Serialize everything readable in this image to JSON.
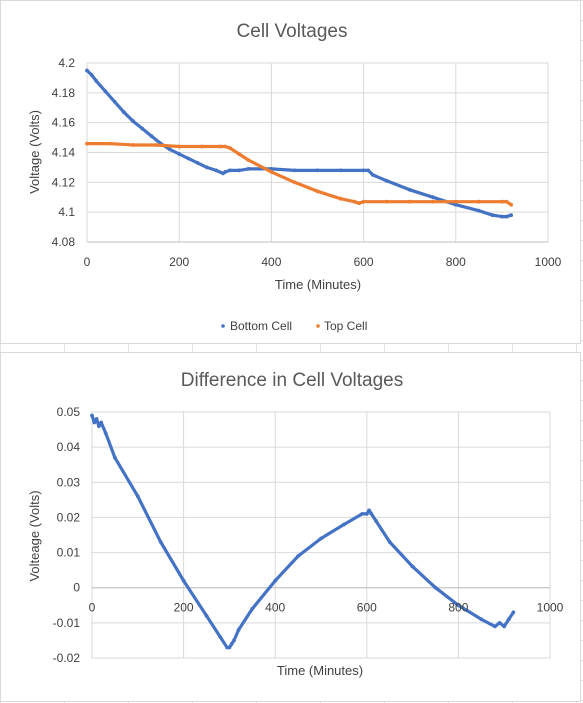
{
  "chart_data": [
    {
      "type": "scatter",
      "title": "Cell Voltages",
      "xlabel": "Time (Minutes)",
      "ylabel": "Voltage (Volts)",
      "xlim": [
        0,
        1000
      ],
      "ylim": [
        4.08,
        4.2
      ],
      "xticks": [
        "0",
        "200",
        "400",
        "600",
        "800",
        "1000"
      ],
      "yticks": [
        "4.08",
        "4.1",
        "4.12",
        "4.14",
        "4.16",
        "4.18",
        "4.2"
      ],
      "grid": true,
      "legend_position": "bottom",
      "series": [
        {
          "name": "Bottom Cell",
          "color": "#4472c4",
          "points": [
            [
              0,
              4.195
            ],
            [
              10,
              4.192
            ],
            [
              20,
              4.188
            ],
            [
              40,
              4.181
            ],
            [
              60,
              4.174
            ],
            [
              80,
              4.167
            ],
            [
              100,
              4.161
            ],
            [
              120,
              4.156
            ],
            [
              140,
              4.151
            ],
            [
              160,
              4.146
            ],
            [
              180,
              4.142
            ],
            [
              200,
              4.139
            ],
            [
              220,
              4.136
            ],
            [
              240,
              4.133
            ],
            [
              260,
              4.13
            ],
            [
              280,
              4.128
            ],
            [
              295,
              4.126
            ],
            [
              300,
              4.127
            ],
            [
              310,
              4.128
            ],
            [
              330,
              4.128
            ],
            [
              350,
              4.129
            ],
            [
              400,
              4.129
            ],
            [
              450,
              4.128
            ],
            [
              500,
              4.128
            ],
            [
              550,
              4.128
            ],
            [
              600,
              4.128
            ],
            [
              610,
              4.128
            ],
            [
              620,
              4.125
            ],
            [
              650,
              4.121
            ],
            [
              700,
              4.115
            ],
            [
              750,
              4.11
            ],
            [
              800,
              4.105
            ],
            [
              850,
              4.101
            ],
            [
              880,
              4.098
            ],
            [
              900,
              4.097
            ],
            [
              910,
              4.097
            ],
            [
              920,
              4.098
            ]
          ]
        },
        {
          "name": "Top Cell",
          "color": "#ed7d31",
          "points": [
            [
              0,
              4.146
            ],
            [
              50,
              4.146
            ],
            [
              100,
              4.145
            ],
            [
              150,
              4.145
            ],
            [
              200,
              4.144
            ],
            [
              250,
              4.144
            ],
            [
              290,
              4.144
            ],
            [
              300,
              4.144
            ],
            [
              310,
              4.143
            ],
            [
              330,
              4.139
            ],
            [
              350,
              4.135
            ],
            [
              400,
              4.127
            ],
            [
              450,
              4.12
            ],
            [
              500,
              4.114
            ],
            [
              550,
              4.109
            ],
            [
              580,
              4.107
            ],
            [
              590,
              4.106
            ],
            [
              600,
              4.107
            ],
            [
              650,
              4.107
            ],
            [
              700,
              4.107
            ],
            [
              750,
              4.107
            ],
            [
              800,
              4.107
            ],
            [
              850,
              4.107
            ],
            [
              900,
              4.107
            ],
            [
              910,
              4.107
            ],
            [
              920,
              4.105
            ]
          ]
        }
      ]
    },
    {
      "type": "scatter",
      "title": "Difference in Cell Voltages",
      "xlabel": "Time (Minutes)",
      "ylabel": "Volteage (Volts)",
      "xlim": [
        0,
        1000
      ],
      "ylim": [
        -0.02,
        0.05
      ],
      "xticks": [
        "0",
        "200",
        "400",
        "600",
        "800",
        "1000"
      ],
      "yticks": [
        "-0.02",
        "-0.01",
        "0",
        "0.01",
        "0.02",
        "0.03",
        "0.04",
        "0.05"
      ],
      "grid": true,
      "series": [
        {
          "color": "#4472c4",
          "points": [
            [
              0,
              0.049
            ],
            [
              5,
              0.047
            ],
            [
              10,
              0.048
            ],
            [
              15,
              0.046
            ],
            [
              20,
              0.047
            ],
            [
              30,
              0.044
            ],
            [
              50,
              0.037
            ],
            [
              100,
              0.026
            ],
            [
              150,
              0.013
            ],
            [
              200,
              0.002
            ],
            [
              250,
              -0.008
            ],
            [
              280,
              -0.014
            ],
            [
              295,
              -0.017
            ],
            [
              300,
              -0.017
            ],
            [
              305,
              -0.016
            ],
            [
              310,
              -0.015
            ],
            [
              320,
              -0.012
            ],
            [
              350,
              -0.006
            ],
            [
              400,
              0.002
            ],
            [
              450,
              0.009
            ],
            [
              500,
              0.014
            ],
            [
              550,
              0.018
            ],
            [
              590,
              0.021
            ],
            [
              600,
              0.021
            ],
            [
              605,
              0.022
            ],
            [
              610,
              0.021
            ],
            [
              620,
              0.019
            ],
            [
              650,
              0.013
            ],
            [
              700,
              0.006
            ],
            [
              750,
              0.0
            ],
            [
              800,
              -0.005
            ],
            [
              850,
              -0.009
            ],
            [
              880,
              -0.011
            ],
            [
              890,
              -0.01
            ],
            [
              900,
              -0.011
            ],
            [
              910,
              -0.009
            ],
            [
              920,
              -0.007
            ]
          ]
        }
      ]
    }
  ],
  "legend": {
    "items": [
      "Bottom Cell",
      "Top Cell"
    ]
  }
}
